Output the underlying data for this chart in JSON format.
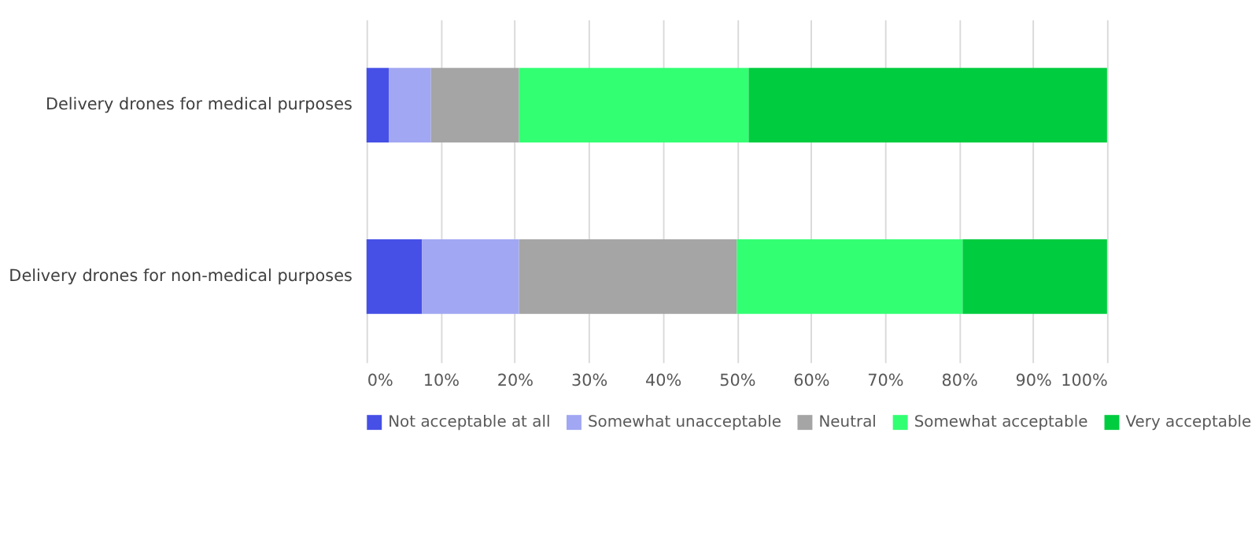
{
  "chart_data": {
    "type": "bar",
    "orientation": "horizontal",
    "stacked": true,
    "categories": [
      "Delivery drones for medical purposes",
      "Delivery drones for non-medical purposes"
    ],
    "series": [
      {
        "name": "Not acceptable at all",
        "color": "#4650e6",
        "values": [
          3.0,
          7.5
        ]
      },
      {
        "name": "Somewhat unacceptable",
        "color": "#a1a7f2",
        "values": [
          5.7,
          13.1
        ]
      },
      {
        "name": "Neutral",
        "color": "#a5a5a5",
        "values": [
          11.9,
          29.4
        ]
      },
      {
        "name": "Somewhat acceptable",
        "color": "#33ff73",
        "values": [
          31.0,
          30.5
        ]
      },
      {
        "name": "Very acceptable",
        "color": "#00cc3f",
        "values": [
          48.4,
          19.5
        ]
      }
    ],
    "xlim": [
      0,
      100
    ],
    "xticks": [
      {
        "value": 0,
        "label": "0%"
      },
      {
        "value": 10,
        "label": "10%"
      },
      {
        "value": 20,
        "label": "20%"
      },
      {
        "value": 30,
        "label": "30%"
      },
      {
        "value": 40,
        "label": "40%"
      },
      {
        "value": 50,
        "label": "50%"
      },
      {
        "value": 60,
        "label": "60%"
      },
      {
        "value": 70,
        "label": "70%"
      },
      {
        "value": 80,
        "label": "80%"
      },
      {
        "value": 90,
        "label": "90%"
      },
      {
        "value": 100,
        "label": "100%"
      }
    ],
    "grid": "x",
    "legend": "bottom"
  }
}
